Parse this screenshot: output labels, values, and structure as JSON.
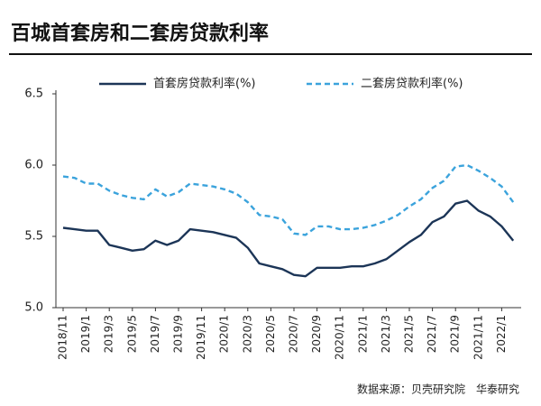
{
  "chart_data": {
    "type": "line",
    "title": "百城首套房和二套房贷款利率",
    "source": "数据来源：贝壳研究院　华泰研究",
    "categories": [
      "2018/11",
      null,
      "2019/1",
      null,
      "2019/3",
      null,
      "2019/5",
      null,
      "2019/7",
      null,
      "2019/9",
      null,
      "2019/11",
      null,
      "2020/1",
      null,
      "2020/3",
      null,
      "2020/5",
      null,
      "2020/7",
      null,
      "2020/9",
      null,
      "2020/11",
      null,
      "2021/1",
      null,
      "2021/3",
      null,
      "2021/5",
      null,
      "2021/7",
      null,
      "2021/9",
      null,
      "2021/11",
      null,
      "2022/1",
      null
    ],
    "series": [
      {
        "name": "首套房贷款利率(%)",
        "color": "#1c3557",
        "dashed": false,
        "values": [
          5.56,
          5.55,
          5.54,
          5.54,
          5.44,
          5.42,
          5.4,
          5.41,
          5.47,
          5.44,
          5.47,
          5.55,
          5.54,
          5.53,
          5.51,
          5.49,
          5.42,
          5.31,
          5.29,
          5.27,
          5.23,
          5.22,
          5.28,
          5.28,
          5.28,
          5.29,
          5.29,
          5.31,
          5.34,
          5.4,
          5.46,
          5.51,
          5.6,
          5.64,
          5.73,
          5.75,
          5.68,
          5.64,
          5.57,
          5.47
        ]
      },
      {
        "name": "二套房贷款利率(%)",
        "color": "#3ba3dc",
        "dashed": true,
        "values": [
          5.92,
          5.91,
          5.87,
          5.87,
          5.82,
          5.79,
          5.77,
          5.76,
          5.83,
          5.78,
          5.81,
          5.87,
          5.86,
          5.85,
          5.83,
          5.8,
          5.74,
          5.65,
          5.64,
          5.62,
          5.52,
          5.51,
          5.57,
          5.57,
          5.55,
          5.55,
          5.56,
          5.58,
          5.61,
          5.65,
          5.71,
          5.76,
          5.84,
          5.89,
          5.99,
          6.0,
          5.96,
          5.91,
          5.85,
          5.74
        ]
      }
    ],
    "ylim": [
      5.0,
      6.5
    ],
    "yticks": [
      {
        "value": 5.0,
        "label": "5.0"
      },
      5.5,
      {
        "value": 6.0,
        "label": "6.0"
      },
      6.5
    ],
    "legend": "top",
    "grid": false
  }
}
